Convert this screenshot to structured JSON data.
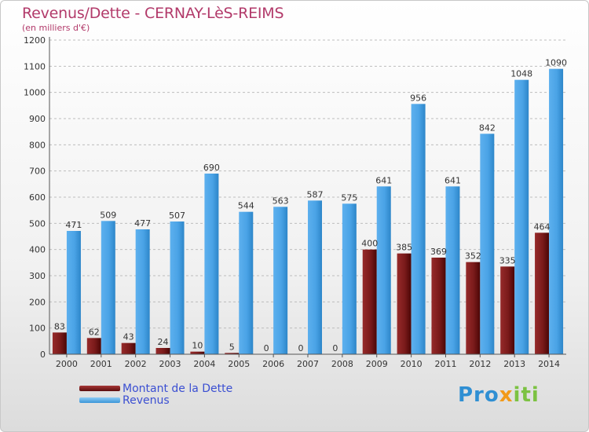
{
  "chart_data": {
    "type": "bar",
    "title": "Revenus/Dette - CERNAY-LèS-REIMS",
    "subtitle": "(en milliers d'€)",
    "categories": [
      "2000",
      "2001",
      "2002",
      "2003",
      "2004",
      "2005",
      "2006",
      "2007",
      "2008",
      "2009",
      "2010",
      "2011",
      "2012",
      "2013",
      "2014"
    ],
    "series": [
      {
        "name": "Montant de la Dette",
        "color": "#7a1a1a",
        "values": [
          83,
          62,
          43,
          24,
          10,
          5,
          0,
          0,
          0,
          400,
          385,
          369,
          352,
          335,
          464
        ]
      },
      {
        "name": "Revenus",
        "color": "#4aa3e6",
        "values": [
          471,
          509,
          477,
          507,
          690,
          544,
          563,
          587,
          575,
          641,
          956,
          641,
          842,
          1048,
          1090
        ]
      }
    ],
    "ylim": [
      0,
      1200
    ],
    "yticks": [
      0,
      100,
      200,
      300,
      400,
      500,
      600,
      700,
      800,
      900,
      1000,
      1100,
      1200
    ],
    "grid": "horizontal-dashed",
    "legend_position": "bottom-left"
  },
  "logo": {
    "parts": [
      "Pro",
      "x",
      "iti"
    ]
  }
}
